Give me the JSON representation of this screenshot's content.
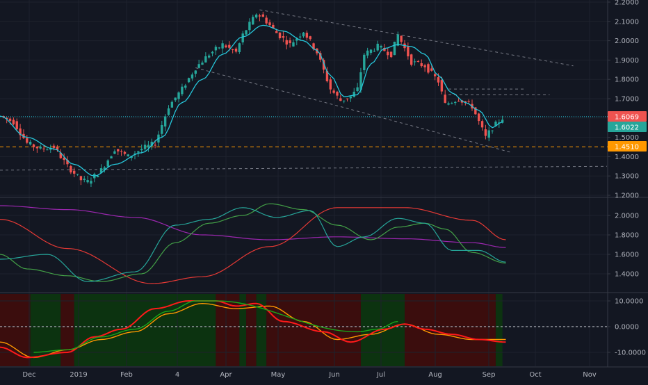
{
  "theme": {
    "background": "#131722",
    "grid": "#1e222d",
    "separator": "#363a45",
    "axis_text": "#b2b5be",
    "up": "#26a69a",
    "down": "#ef5350",
    "ma": "#26c6da",
    "purple": "#9c27b0",
    "red": "#e53935",
    "green": "#43a047",
    "teal": "#26a69a",
    "bg_red": "#3b0d0d",
    "bg_green": "#0c3310",
    "orange_line": "#ff9800"
  },
  "chart_data": [
    {
      "id": "price",
      "type": "candlestick",
      "ylim": [
        1.2,
        2.2
      ],
      "yticks": [
        "1.2000",
        "1.3000",
        "1.4000",
        "1.5000",
        "1.6000",
        "1.7000",
        "1.8000",
        "1.9000",
        "2.0000",
        "2.1000",
        "2.2000"
      ],
      "xticks": [
        "Dec",
        "2019",
        "Feb",
        "4",
        "Apr",
        "May",
        "Jun",
        "Jul",
        "Aug",
        "Sep",
        "Oct",
        "Nov"
      ],
      "price_labels": [
        {
          "value": "1.6069",
          "color": "#ef5350"
        },
        {
          "value": "1.6022",
          "color": "#26a69a"
        },
        {
          "value": "1.4510",
          "color": "#ff9800"
        }
      ],
      "horizontal_lines": [
        {
          "value": 1.6069,
          "style": "dotted",
          "color": "#26c6da"
        },
        {
          "value": 1.451,
          "style": "dashed",
          "color": "#ff9800"
        }
      ],
      "close_path": [
        [
          0,
          1.61
        ],
        [
          4,
          1.58
        ],
        [
          8,
          1.47
        ],
        [
          12,
          1.44
        ],
        [
          16,
          1.45
        ],
        [
          20,
          1.35
        ],
        [
          24,
          1.28
        ],
        [
          26,
          1.27
        ],
        [
          30,
          1.33
        ],
        [
          34,
          1.44
        ],
        [
          38,
          1.4
        ],
        [
          42,
          1.44
        ],
        [
          46,
          1.47
        ],
        [
          50,
          1.66
        ],
        [
          54,
          1.75
        ],
        [
          58,
          1.86
        ],
        [
          62,
          1.93
        ],
        [
          66,
          1.98
        ],
        [
          70,
          1.94
        ],
        [
          72,
          2.03
        ],
        [
          76,
          2.14
        ],
        [
          78,
          2.12
        ],
        [
          82,
          2.04
        ],
        [
          86,
          1.98
        ],
        [
          90,
          2.05
        ],
        [
          94,
          1.94
        ],
        [
          98,
          1.75
        ],
        [
          101,
          1.69
        ],
        [
          104,
          1.71
        ],
        [
          106,
          1.75
        ],
        [
          108,
          1.93
        ],
        [
          112,
          1.97
        ],
        [
          116,
          1.93
        ],
        [
          118,
          2.03
        ],
        [
          122,
          1.89
        ],
        [
          126,
          1.87
        ],
        [
          130,
          1.79
        ],
        [
          132,
          1.67
        ],
        [
          136,
          1.7
        ],
        [
          140,
          1.66
        ],
        [
          144,
          1.5
        ],
        [
          146,
          1.55
        ],
        [
          149,
          1.6
        ]
      ],
      "ma_path": [
        [
          0,
          1.61
        ],
        [
          8,
          1.5
        ],
        [
          16,
          1.44
        ],
        [
          22,
          1.36
        ],
        [
          28,
          1.3
        ],
        [
          34,
          1.36
        ],
        [
          42,
          1.42
        ],
        [
          48,
          1.5
        ],
        [
          54,
          1.68
        ],
        [
          60,
          1.8
        ],
        [
          66,
          1.93
        ],
        [
          72,
          2.02
        ],
        [
          78,
          2.08
        ],
        [
          84,
          2.05
        ],
        [
          90,
          2.0
        ],
        [
          94,
          1.95
        ],
        [
          98,
          1.82
        ],
        [
          102,
          1.71
        ],
        [
          106,
          1.72
        ],
        [
          110,
          1.88
        ],
        [
          114,
          1.96
        ],
        [
          118,
          1.98
        ],
        [
          122,
          1.97
        ],
        [
          126,
          1.93
        ],
        [
          130,
          1.82
        ],
        [
          134,
          1.73
        ],
        [
          138,
          1.68
        ],
        [
          142,
          1.64
        ],
        [
          146,
          1.55
        ],
        [
          149,
          1.58
        ]
      ],
      "trendlines": [
        {
          "from": [
            77,
            2.16
          ],
          "to": [
            170,
            1.87
          ]
        },
        {
          "from": [
            58,
            1.86
          ],
          "to": [
            152,
            1.42
          ]
        },
        {
          "from": [
            0,
            1.33
          ],
          "to": [
            180,
            1.35
          ]
        },
        {
          "from": [
            133,
            1.75
          ],
          "to": [
            156,
            1.75
          ]
        },
        {
          "from": [
            133,
            1.72
          ],
          "to": [
            163,
            1.72
          ]
        }
      ]
    },
    {
      "id": "moving-averages",
      "type": "line",
      "ylim": [
        1.2,
        2.2
      ],
      "yticks": [
        "1.4000",
        "1.6000",
        "1.8000",
        "2.0000"
      ],
      "series": [
        {
          "color": "#9c27b0",
          "points": [
            [
              0,
              2.1
            ],
            [
              20,
              2.06
            ],
            [
              40,
              1.98
            ],
            [
              60,
              1.8
            ],
            [
              80,
              1.75
            ],
            [
              100,
              1.78
            ],
            [
              120,
              1.76
            ],
            [
              140,
              1.72
            ],
            [
              150,
              1.67
            ]
          ]
        },
        {
          "color": "#e53935",
          "points": [
            [
              0,
              1.96
            ],
            [
              20,
              1.66
            ],
            [
              45,
              1.3
            ],
            [
              60,
              1.37
            ],
            [
              80,
              1.68
            ],
            [
              100,
              2.08
            ],
            [
              120,
              2.08
            ],
            [
              140,
              1.95
            ],
            [
              150,
              1.75
            ]
          ]
        },
        {
          "color": "#43a047",
          "points": [
            [
              0,
              1.6
            ],
            [
              8,
              1.45
            ],
            [
              20,
              1.38
            ],
            [
              30,
              1.32
            ],
            [
              42,
              1.4
            ],
            [
              52,
              1.72
            ],
            [
              62,
              1.92
            ],
            [
              72,
              2.0
            ],
            [
              80,
              2.12
            ],
            [
              90,
              2.06
            ],
            [
              100,
              1.9
            ],
            [
              110,
              1.75
            ],
            [
              118,
              1.88
            ],
            [
              126,
              1.92
            ],
            [
              132,
              1.86
            ],
            [
              140,
              1.62
            ],
            [
              150,
              1.51
            ]
          ]
        },
        {
          "color": "#26a69a",
          "points": [
            [
              0,
              1.55
            ],
            [
              14,
              1.6
            ],
            [
              26,
              1.32
            ],
            [
              40,
              1.42
            ],
            [
              52,
              1.9
            ],
            [
              62,
              1.96
            ],
            [
              72,
              2.08
            ],
            [
              82,
              1.98
            ],
            [
              92,
              2.05
            ],
            [
              100,
              1.68
            ],
            [
              108,
              1.78
            ],
            [
              118,
              1.97
            ],
            [
              126,
              1.92
            ],
            [
              134,
              1.64
            ],
            [
              142,
              1.64
            ],
            [
              150,
              1.52
            ]
          ]
        }
      ]
    },
    {
      "id": "momentum",
      "type": "line",
      "ylim": [
        -15,
        12
      ],
      "yticks": [
        "-10.0000",
        "0.0000",
        "10.0000"
      ],
      "zero_line": true,
      "background_bands": [
        {
          "from": 0,
          "to": 9,
          "color": "#3b0d0d"
        },
        {
          "from": 9,
          "to": 18,
          "color": "#0c3310"
        },
        {
          "from": 18,
          "to": 22,
          "color": "#3b0d0d"
        },
        {
          "from": 22,
          "to": 64,
          "color": "#0c3310"
        },
        {
          "from": 64,
          "to": 71,
          "color": "#3b0d0d"
        },
        {
          "from": 71,
          "to": 73,
          "color": "#0c3310"
        },
        {
          "from": 73,
          "to": 76,
          "color": "#3b0d0d"
        },
        {
          "from": 76,
          "to": 79,
          "color": "#0c3310"
        },
        {
          "from": 79,
          "to": 107,
          "color": "#3b0d0d"
        },
        {
          "from": 107,
          "to": 120,
          "color": "#0c3310"
        },
        {
          "from": 120,
          "to": 147,
          "color": "#3b0d0d"
        },
        {
          "from": 147,
          "to": 149,
          "color": "#0c3310"
        }
      ],
      "series": [
        {
          "color": "#ff9800",
          "points": [
            [
              0,
              -6
            ],
            [
              10,
              -12
            ],
            [
              20,
              -9
            ],
            [
              30,
              -5
            ],
            [
              40,
              -2
            ],
            [
              50,
              5
            ],
            [
              60,
              9
            ],
            [
              70,
              7
            ],
            [
              80,
              8
            ],
            [
              90,
              2
            ],
            [
              100,
              -5
            ],
            [
              110,
              -3
            ],
            [
              120,
              1
            ],
            [
              130,
              -3
            ],
            [
              140,
              -5
            ],
            [
              150,
              -5
            ]
          ]
        },
        {
          "color": "#ff1a1a",
          "points": [
            [
              0,
              -8
            ],
            [
              8,
              -12
            ],
            [
              20,
              -10
            ],
            [
              28,
              -4
            ],
            [
              36,
              -1
            ],
            [
              46,
              7
            ],
            [
              56,
              10
            ],
            [
              64,
              10
            ],
            [
              70,
              8
            ],
            [
              76,
              9
            ],
            [
              84,
              2
            ],
            [
              96,
              -2
            ],
            [
              104,
              -6
            ],
            [
              114,
              -1
            ],
            [
              120,
              1
            ],
            [
              126,
              -1
            ],
            [
              134,
              -3
            ],
            [
              142,
              -5
            ],
            [
              150,
              -6
            ]
          ]
        },
        {
          "color": "#1aa61a",
          "points": [
            [
              10,
              -10
            ],
            [
              20,
              -9
            ],
            [
              30,
              -4
            ],
            [
              40,
              -1
            ],
            [
              50,
              6
            ],
            [
              58,
              10
            ],
            [
              64,
              10
            ],
            [
              106,
              -2
            ],
            [
              112,
              -1
            ],
            [
              118,
              2
            ]
          ]
        }
      ]
    }
  ]
}
